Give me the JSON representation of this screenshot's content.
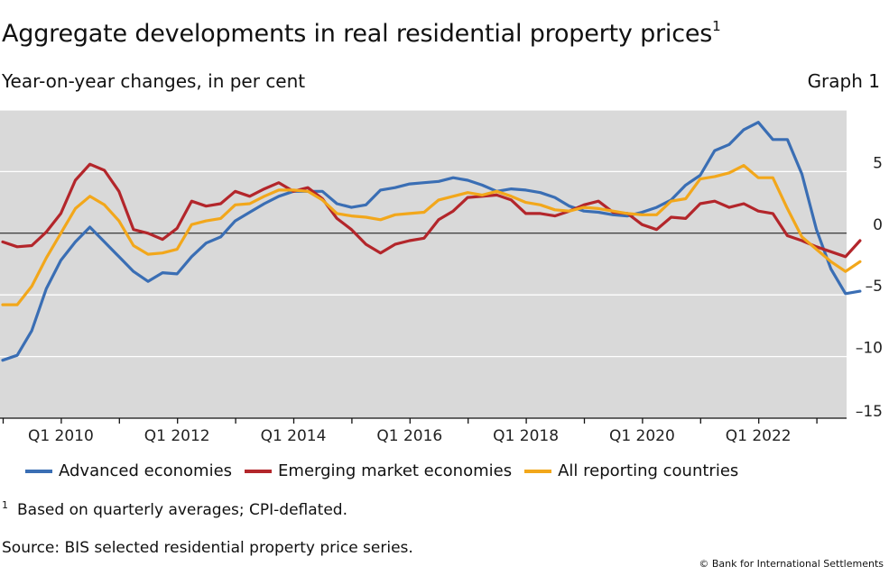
{
  "header": {
    "title": "Aggregate developments in real residential property prices",
    "title_footnote_mark": "1",
    "subtitle": "Year-on-year changes, in per cent",
    "graph_label": "Graph 1"
  },
  "footer": {
    "footnote_mark": "1",
    "footnote": "Based on quarterly averages; CPI-deflated.",
    "source": "Source: BIS selected residential property price series.",
    "copyright": "© Bank for International Settlements"
  },
  "chart_data": {
    "type": "line",
    "title": "Aggregate developments in real residential property prices",
    "ylabel": "",
    "xlabel": "",
    "x_start": "Q1 2009",
    "x_frequency": "quarterly",
    "ylim": [
      -15,
      10
    ],
    "yticks": [
      5,
      0,
      -5,
      -10,
      -15
    ],
    "ytick_labels": [
      "5",
      "0",
      "–5",
      "–10",
      "–15"
    ],
    "xtick_labels": [
      "Q1 2010",
      "Q1 2012",
      "Q1 2014",
      "Q1 2016",
      "Q1 2018",
      "Q1 2020",
      "Q1 2022"
    ],
    "xtick_label_index": [
      4,
      12,
      20,
      28,
      36,
      44,
      52
    ],
    "grid": true,
    "background": "#d9d9d9",
    "legend_position": "bottom",
    "series": [
      {
        "name": "Advanced economies",
        "color": "#3a6eb4",
        "values": [
          -10.3,
          -9.9,
          -7.9,
          -4.5,
          -2.2,
          -0.7,
          0.5,
          -0.7,
          -1.9,
          -3.1,
          -3.9,
          -3.2,
          -3.3,
          -1.9,
          -0.8,
          -0.3,
          1.0,
          1.7,
          2.4,
          3.0,
          3.4,
          3.4,
          3.4,
          2.4,
          2.1,
          2.3,
          3.5,
          3.7,
          4.0,
          4.1,
          4.2,
          4.5,
          4.3,
          3.9,
          3.4,
          3.6,
          3.5,
          3.3,
          2.9,
          2.2,
          1.8,
          1.7,
          1.5,
          1.4,
          1.7,
          2.1,
          2.7,
          3.9,
          4.7,
          6.7,
          7.2,
          8.4,
          9.0,
          7.6,
          7.6,
          4.8,
          0.3,
          -2.9,
          -4.9,
          -4.7
        ]
      },
      {
        "name": "Emerging market economies",
        "color": "#b3262b",
        "values": [
          -0.7,
          -1.1,
          -1.0,
          0.1,
          1.6,
          4.3,
          5.6,
          5.1,
          3.4,
          0.3,
          0.0,
          -0.5,
          0.4,
          2.6,
          2.2,
          2.4,
          3.4,
          3.0,
          3.6,
          4.1,
          3.4,
          3.7,
          2.8,
          1.2,
          0.3,
          -0.9,
          -1.6,
          -0.9,
          -0.6,
          -0.4,
          1.1,
          1.8,
          2.9,
          3.0,
          3.1,
          2.7,
          1.6,
          1.6,
          1.4,
          1.8,
          2.3,
          2.6,
          1.7,
          1.6,
          0.7,
          0.3,
          1.3,
          1.2,
          2.4,
          2.6,
          2.1,
          2.4,
          1.8,
          1.6,
          -0.2,
          -0.6,
          -1.1,
          -1.5,
          -1.9,
          -0.6
        ]
      },
      {
        "name": "All reporting countries",
        "color": "#f2a71b",
        "values": [
          -5.8,
          -5.8,
          -4.3,
          -2.0,
          0.0,
          2.0,
          3.0,
          2.3,
          1.0,
          -1.0,
          -1.7,
          -1.6,
          -1.3,
          0.7,
          1.0,
          1.2,
          2.3,
          2.4,
          3.0,
          3.5,
          3.5,
          3.4,
          2.7,
          1.6,
          1.4,
          1.3,
          1.1,
          1.5,
          1.6,
          1.7,
          2.7,
          3.0,
          3.3,
          3.1,
          3.4,
          3.0,
          2.5,
          2.3,
          1.9,
          1.8,
          2.1,
          2.0,
          1.8,
          1.6,
          1.5,
          1.5,
          2.6,
          2.8,
          4.4,
          4.6,
          4.9,
          5.5,
          4.5,
          4.5,
          2.0,
          -0.3,
          -1.3,
          -2.3,
          -3.1,
          -2.3
        ]
      }
    ]
  }
}
